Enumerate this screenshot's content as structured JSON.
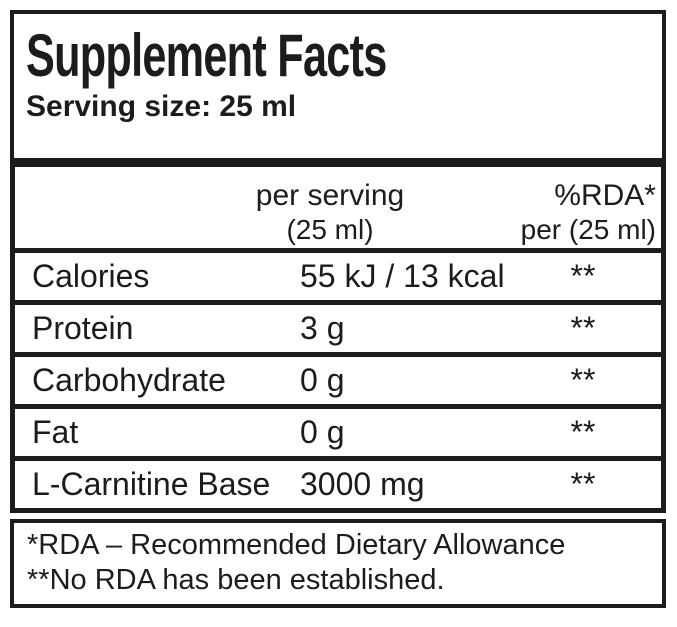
{
  "label": {
    "title": "Supplement Facts",
    "serving_size": "Serving size: 25 ml",
    "header": {
      "per_serving_line1": "per serving",
      "per_serving_line2": "(25 ml)",
      "rda_line1": "%RDA*",
      "rda_line2": "per (25 ml)"
    },
    "rows": [
      {
        "name": "Calories",
        "value": "55 kJ / 13 kcal",
        "rda": "**"
      },
      {
        "name": "Protein",
        "value": "3 g",
        "rda": "**"
      },
      {
        "name": "Carbohydrate",
        "value": "0 g",
        "rda": "**"
      },
      {
        "name": "Fat",
        "value": "0 g",
        "rda": "**"
      },
      {
        "name": "L-Carnitine Base",
        "value": "3000 mg",
        "rda": "**"
      }
    ],
    "footnotes": {
      "line1": "*RDA – Recommended Dietary Allowance",
      "line2": "**No RDA has been established."
    },
    "colors": {
      "text": "#1c1c1c",
      "border": "#1c1c1c",
      "background": "#ffffff"
    }
  }
}
